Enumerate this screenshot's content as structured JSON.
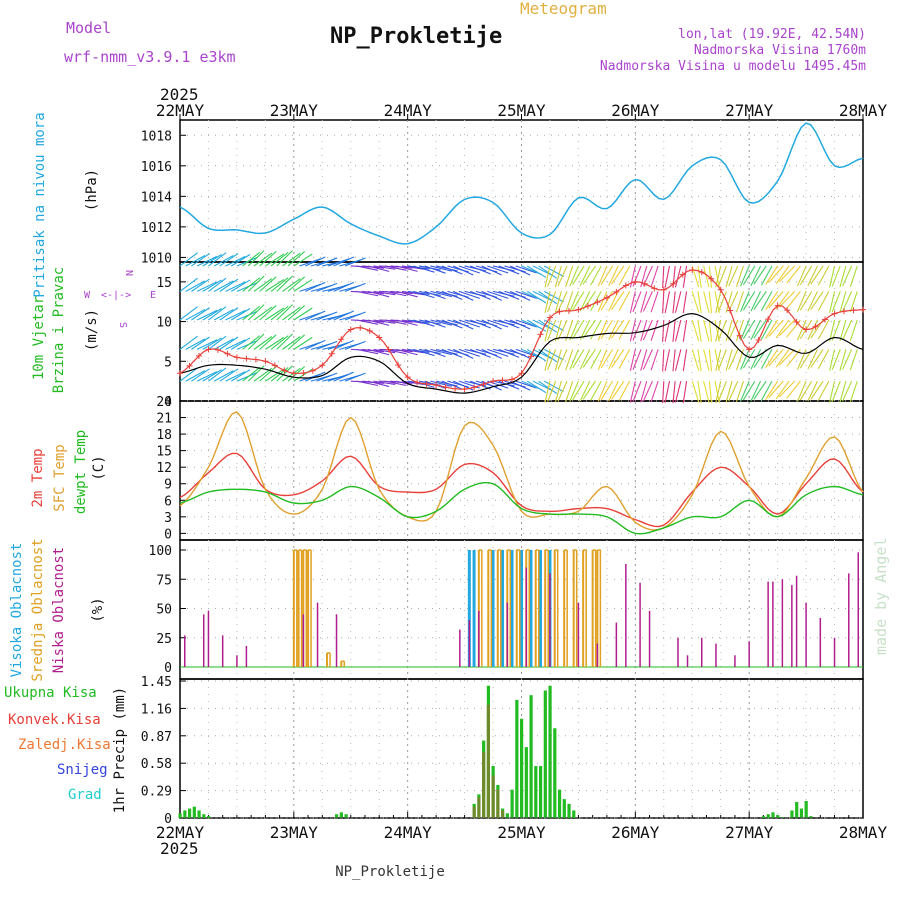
{
  "header": {
    "model_label": "Model",
    "model_name": "wrf-nmm_v3.9.1 e3km",
    "title": "NP_Prokletije",
    "product": "Meteogram",
    "lonlat": "lon,lat (19.92E, 42.54N)",
    "altitude": "Nadmorska Visina 1760m",
    "model_altitude": "Nadmorska Visina u modelu 1495.45m",
    "year_top": "2025",
    "year_bottom": "2025",
    "footer_title": "NP_Prokletije",
    "watermark": "made by Angel"
  },
  "colors": {
    "pressure": "#22a8e0",
    "temp2m": "#e8403a",
    "sfctemp": "#e0a030",
    "dewpt": "#22bb22",
    "high_cloud": "#22a8e0",
    "mid_cloud": "#e0a020",
    "low_cloud": "#b01e8e",
    "total_precip": "#22bb22",
    "conv_precip": "#e8403a",
    "frozen_precip": "#ee7733",
    "snow": "#3344dd",
    "graupel": "#22cccc",
    "wind_label": "#22bb22",
    "compass": "#aa44cc",
    "purple_text": "#aa44cc",
    "product": "#e0b040"
  },
  "chart_data": [
    {
      "type": "line",
      "id": "pressure",
      "ylabel_left": "Pritisak na nivou mora",
      "unit": "(hPa)",
      "x_categories": [
        "22MAY",
        "23MAY",
        "24MAY",
        "25MAY",
        "26MAY",
        "27MAY",
        "28MAY"
      ],
      "ylim": [
        1009.7,
        1019.0
      ],
      "yticks": [
        "1010",
        "1012",
        "1014",
        "1016",
        "1018"
      ],
      "x_hours": [
        0,
        6,
        12,
        18,
        24,
        30,
        36,
        42,
        48,
        54,
        60,
        66,
        72,
        78,
        84,
        90,
        96,
        102,
        108,
        114,
        120,
        126,
        132,
        138,
        144
      ],
      "values": [
        1013.3,
        1011.9,
        1011.8,
        1011.6,
        1012.5,
        1013.3,
        1012.2,
        1011.4,
        1010.9,
        1012.0,
        1013.8,
        1013.6,
        1011.6,
        1011.5,
        1013.9,
        1013.2,
        1015.1,
        1013.8,
        1016.0,
        1016.4,
        1013.6,
        1015.0,
        1018.8,
        1016.0,
        1016.5
      ]
    },
    {
      "type": "wind",
      "id": "wind",
      "ylabel_left": "10m Vjetar",
      "ylabel_left2": "Brzina i Pravac",
      "unit": "(m/s)",
      "compass": {
        "n": "N",
        "s": "S",
        "e": "E",
        "w": "W"
      },
      "ylim": [
        0,
        17.5
      ],
      "yticks": [
        "0",
        "5",
        "10",
        "15"
      ],
      "x_hours": [
        0,
        6,
        12,
        18,
        24,
        30,
        36,
        42,
        48,
        54,
        60,
        66,
        72,
        78,
        84,
        90,
        96,
        102,
        108,
        114,
        120,
        126,
        132,
        138,
        144
      ],
      "speed": [
        3.5,
        4.5,
        4.5,
        4.0,
        3.0,
        3.2,
        5.5,
        5.0,
        2.2,
        1.5,
        1.0,
        1.8,
        3.0,
        7.5,
        8.0,
        8.5,
        8.6,
        9.5,
        11.0,
        9.0,
        5.5,
        7.0,
        6.0,
        8.0,
        6.5
      ],
      "gust": [
        3.5,
        6.5,
        5.5,
        5.0,
        3.5,
        4.5,
        9.0,
        8.0,
        3.0,
        2.0,
        1.5,
        2.5,
        3.5,
        10.5,
        11.5,
        13.0,
        15.0,
        14.0,
        16.5,
        14.0,
        6.5,
        12.0,
        9.0,
        11.0,
        11.5
      ],
      "dir_deg": [
        240,
        240,
        230,
        230,
        250,
        250,
        280,
        280,
        285,
        290,
        290,
        290,
        300,
        20,
        30,
        30,
        20,
        10,
        350,
        20,
        30,
        40,
        30,
        20,
        20
      ],
      "dir_color": [
        "#22aadd",
        "#22aadd",
        "#33cc55",
        "#33cc55",
        "#2277dd",
        "#2277dd",
        "#7733cc",
        "#7733cc",
        "#3355dd",
        "#3355dd",
        "#3355dd",
        "#3355dd",
        "#33aadd",
        "#cccc33",
        "#aadd33",
        "#eecc33",
        "#dd44aa",
        "#dd3377",
        "#e2dd33",
        "#cccc33",
        "#44cc66",
        "#eecc33",
        "#cccc33",
        "#aadd33",
        "#22aadd"
      ]
    },
    {
      "type": "line",
      "id": "temperature",
      "ylabel_left": "2m Temp",
      "ylabel_left2": "SFC Temp",
      "ylabel_left3": "dewpt Temp",
      "unit": "(C)",
      "ylim": [
        -1.2,
        24
      ],
      "yticks": [
        "0",
        "3",
        "6",
        "9",
        "12",
        "15",
        "18",
        "21",
        "24"
      ],
      "x_hours": [
        0,
        6,
        12,
        18,
        24,
        30,
        36,
        42,
        48,
        54,
        60,
        66,
        72,
        78,
        84,
        90,
        96,
        102,
        108,
        114,
        120,
        126,
        132,
        138,
        144
      ],
      "series": [
        {
          "name": "2m Temp",
          "values": [
            6.5,
            11.0,
            14.5,
            8.0,
            7.0,
            9.5,
            14.0,
            8.5,
            7.5,
            8.0,
            12.5,
            11.0,
            5.0,
            4.0,
            4.5,
            4.5,
            2.5,
            1.5,
            7.5,
            12.0,
            8.5,
            3.5,
            9.0,
            13.5,
            7.5
          ]
        },
        {
          "name": "SFC Temp",
          "values": [
            5.0,
            12.0,
            22.0,
            8.0,
            3.5,
            8.0,
            21.0,
            8.0,
            3.0,
            4.0,
            19.5,
            16.0,
            4.0,
            3.5,
            4.0,
            8.5,
            2.0,
            1.0,
            7.0,
            18.5,
            8.5,
            3.0,
            10.0,
            17.5,
            7.5
          ]
        },
        {
          "name": "dewpt Temp",
          "values": [
            5.5,
            7.5,
            8.0,
            7.5,
            5.5,
            6.0,
            8.5,
            6.5,
            3.0,
            4.0,
            8.0,
            9.0,
            4.5,
            3.5,
            3.5,
            3.0,
            0.0,
            1.0,
            3.0,
            3.0,
            6.0,
            3.0,
            7.0,
            8.5,
            7.0
          ]
        }
      ]
    },
    {
      "type": "bar",
      "id": "clouds",
      "ylabel_left": "Visoka Oblacnost",
      "ylabel_left2": "Srednja Oblacnost",
      "ylabel_left3": "Niska Oblacnost",
      "unit": "(%)",
      "ylim": [
        0,
        100
      ],
      "yticks": [
        "0",
        "25",
        "50",
        "75",
        "100"
      ],
      "series": [
        {
          "name": "Visoka Oblacnost",
          "x_hours": [
            61,
            62,
            66,
            68,
            70,
            72,
            74,
            76,
            78
          ],
          "values": [
            100,
            100,
            100,
            100,
            100,
            100,
            100,
            100,
            100
          ]
        },
        {
          "name": "Srednja Oblacnost",
          "x_hours": [
            24,
            25,
            26,
            27,
            31,
            34,
            63,
            65,
            67,
            69,
            71,
            73,
            75,
            77,
            79,
            81,
            83,
            85,
            87,
            88
          ],
          "values": [
            100,
            100,
            100,
            100,
            12,
            5,
            100,
            100,
            100,
            100,
            100,
            100,
            100,
            100,
            100,
            100,
            100,
            100,
            100,
            100
          ]
        },
        {
          "name": "Niska Oblacnost",
          "x_hours": [
            1,
            5,
            6,
            9,
            12,
            14,
            26,
            29,
            33,
            59,
            61,
            63,
            69,
            73,
            78,
            84,
            88,
            92,
            94,
            97,
            99,
            105,
            107,
            110,
            113,
            117,
            120,
            124,
            125,
            127,
            129,
            130,
            132,
            135,
            138,
            141,
            143
          ],
          "values": [
            27,
            45,
            48,
            27,
            10,
            18,
            45,
            55,
            45,
            32,
            40,
            48,
            55,
            85,
            80,
            55,
            20,
            38,
            88,
            72,
            48,
            25,
            10,
            25,
            20,
            10,
            22,
            73,
            73,
            75,
            70,
            78,
            55,
            42,
            25,
            80,
            98
          ]
        }
      ]
    },
    {
      "type": "bar",
      "id": "precip",
      "ylabel_left": "1hr Precip (mm)",
      "legend": [
        "Ukupna Kisa",
        "Konvek.Kisa",
        "Zaledj.Kisa",
        "Snijeg",
        "Grad"
      ],
      "x_categories_bottom": [
        "22MAY",
        "23MAY",
        "24MAY",
        "25MAY",
        "26MAY",
        "27MAY",
        "28MAY"
      ],
      "ylim": [
        0,
        1.45
      ],
      "yticks": [
        "0",
        "0.29",
        "0.58",
        "0.87",
        "1.16",
        "1.45"
      ],
      "series": [
        {
          "name": "Ukupna Kisa",
          "x_hours": [
            0,
            1,
            2,
            3,
            4,
            5,
            6,
            33,
            34,
            35,
            62,
            63,
            64,
            65,
            66,
            67,
            68,
            69,
            70,
            71,
            72,
            73,
            74,
            75,
            76,
            77,
            78,
            79,
            80,
            81,
            82,
            83,
            123,
            124,
            125,
            126,
            127,
            129,
            130,
            131,
            132,
            133
          ],
          "values": [
            0.05,
            0.08,
            0.1,
            0.12,
            0.08,
            0.04,
            0.02,
            0.04,
            0.06,
            0.04,
            0.15,
            0.25,
            0.82,
            1.4,
            0.55,
            0.35,
            0.1,
            0.05,
            0.3,
            1.25,
            1.05,
            0.75,
            1.3,
            0.55,
            0.55,
            1.35,
            1.4,
            0.95,
            0.3,
            0.2,
            0.15,
            0.08,
            0.02,
            0.04,
            0.06,
            0.03,
            0.01,
            0.08,
            0.17,
            0.1,
            0.18,
            0.02
          ]
        },
        {
          "name": "Zaledj.Kisa",
          "x_hours": [
            62,
            63,
            64,
            65,
            66,
            67,
            68
          ],
          "values": [
            0.12,
            0.22,
            0.7,
            1.2,
            0.45,
            0.3,
            0.08
          ]
        }
      ]
    }
  ]
}
